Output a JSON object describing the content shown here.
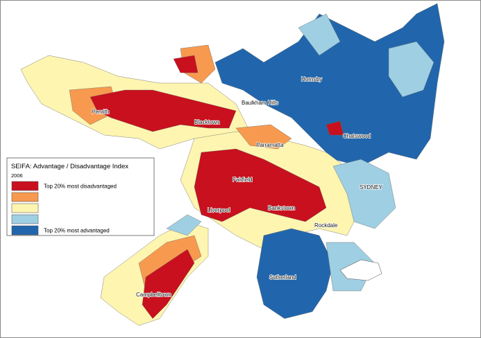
{
  "legend": {
    "title": "SEIFA: Advantage / Disadvantage Index",
    "subtitle": "2006",
    "items": [
      {
        "color": "#c8101e",
        "label": "Top 20% most disadvantaged"
      },
      {
        "color": "#f79a4f"
      },
      {
        "color": "#fdf5b0"
      },
      {
        "color": "#9fcfe3"
      },
      {
        "color": "#2166ac",
        "label": "Top 20% most advantaged"
      }
    ]
  },
  "places": [
    "Penrith",
    "Blacktown",
    "Baulkham Hills",
    "Hornsby",
    "Parramatta",
    "Chatswood",
    "Fairfield",
    "SYDNEY",
    "Liverpool",
    "Bankstown",
    "Rockdale",
    "Sutherland",
    "Campbelltown"
  ]
}
